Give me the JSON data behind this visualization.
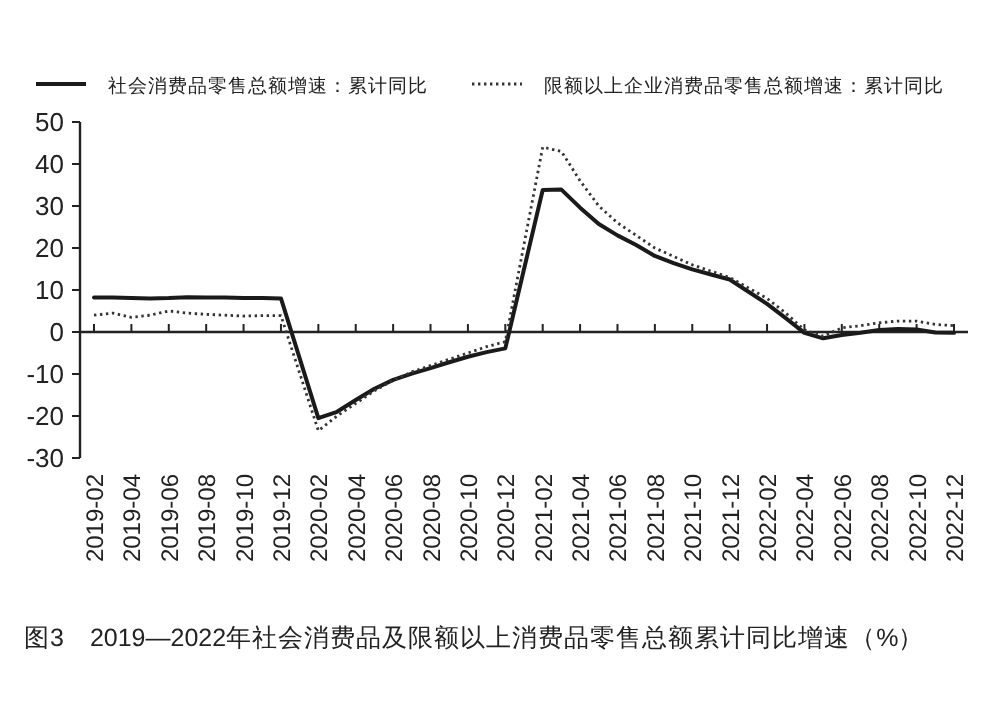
{
  "chart_data": {
    "type": "line",
    "x": [
      "2019-02",
      "2019-03",
      "2019-04",
      "2019-05",
      "2019-06",
      "2019-07",
      "2019-08",
      "2019-09",
      "2019-10",
      "2019-11",
      "2019-12",
      "2020-02",
      "2020-03",
      "2020-04",
      "2020-05",
      "2020-06",
      "2020-07",
      "2020-08",
      "2020-09",
      "2020-10",
      "2020-11",
      "2020-12",
      "2021-02",
      "2021-03",
      "2021-04",
      "2021-05",
      "2021-06",
      "2021-07",
      "2021-08",
      "2021-09",
      "2021-10",
      "2021-11",
      "2021-12",
      "2022-02",
      "2022-03",
      "2022-04",
      "2022-05",
      "2022-06",
      "2022-07",
      "2022-08",
      "2022-09",
      "2022-10",
      "2022-11",
      "2022-12"
    ],
    "series": [
      {
        "name": "社会消费品零售总额增速：累计同比",
        "color": "#1a1a1a",
        "line_style": "solid",
        "values": [
          8.2,
          8.2,
          8.1,
          8.0,
          8.1,
          8.3,
          8.2,
          8.2,
          8.1,
          8.1,
          8.0,
          -20.5,
          -19,
          -16.2,
          -13.5,
          -11.4,
          -9.9,
          -8.6,
          -7.2,
          -5.9,
          -4.8,
          -3.9,
          33.8,
          33.9,
          29.6,
          25.7,
          23.0,
          20.7,
          18.1,
          16.4,
          14.9,
          13.7,
          12.5,
          6.7,
          3.3,
          -0.2,
          -1.5,
          -0.7,
          -0.2,
          0.5,
          0.7,
          0.6,
          -0.1,
          -0.2
        ]
      },
      {
        "name": "限额以上企业消费品零售总额增速：累计同比",
        "color": "#333333",
        "line_style": "dotted",
        "values": [
          4,
          4.5,
          3.5,
          4,
          5,
          4.5,
          4.2,
          4,
          3.8,
          3.9,
          3.9,
          -23.5,
          -20,
          -17,
          -14,
          -11.5,
          -9.5,
          -8,
          -6.5,
          -5,
          -3.5,
          -2.3,
          44,
          43,
          36,
          30,
          26,
          23,
          20,
          18,
          16,
          14.5,
          13,
          8,
          4.5,
          0.5,
          -1,
          1,
          1.5,
          2.2,
          2.6,
          2.6,
          1.8,
          1.5
        ]
      }
    ],
    "xlim": [
      "2019-02",
      "2022-12"
    ],
    "xticks": [
      "2019-02",
      "2019-04",
      "2019-06",
      "2019-08",
      "2019-10",
      "2019-12",
      "2020-02",
      "2020-04",
      "2020-06",
      "2020-08",
      "2020-10",
      "2020-12",
      "2021-02",
      "2021-04",
      "2021-06",
      "2021-08",
      "2021-10",
      "2021-12",
      "2022-02",
      "2022-04",
      "2022-06",
      "2022-08",
      "2022-10",
      "2022-12"
    ],
    "ylim": [
      -30,
      50
    ],
    "yticks": [
      -30,
      -20,
      -10,
      0,
      10,
      20,
      30,
      40,
      50
    ],
    "legend": "top",
    "marker": "none",
    "annotations": [
      "图3　2019—2022年社会消费品及限额以上消费品零售总额累计同比增速（%）"
    ]
  }
}
